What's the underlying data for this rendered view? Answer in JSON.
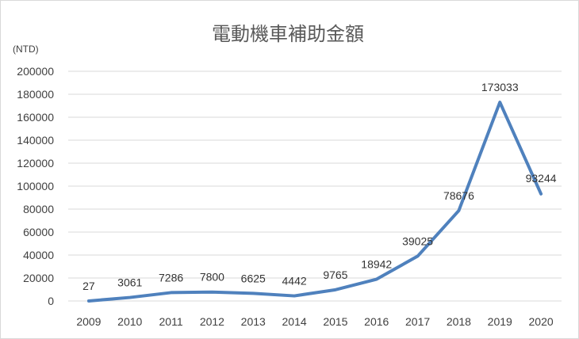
{
  "chart_data": {
    "type": "line",
    "title": "電動機車補助金額",
    "unit_label": "(NTD)",
    "xlabel": "",
    "ylabel": "",
    "categories": [
      "2009",
      "2010",
      "2011",
      "2012",
      "2013",
      "2014",
      "2015",
      "2016",
      "2017",
      "2018",
      "2019",
      "2020"
    ],
    "series": [
      {
        "values": [
          27,
          3061,
          7286,
          7800,
          6625,
          4442,
          9765,
          18942,
          39025,
          78676,
          173033,
          93244
        ]
      }
    ],
    "y_ticks": [
      "0",
      "20000",
      "40000",
      "60000",
      "80000",
      "100000",
      "120000",
      "140000",
      "160000",
      "180000",
      "200000"
    ],
    "ylim": [
      0,
      200000
    ],
    "grid": true,
    "legend": "none",
    "data_labels": true,
    "line_color": "#4f81bd",
    "grid_color": "#d9d9d9"
  }
}
